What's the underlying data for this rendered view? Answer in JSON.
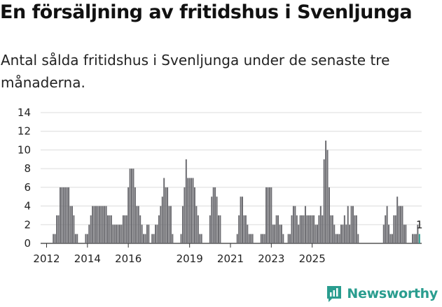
{
  "title": "En försäljning av fritidshus i Svenljunga",
  "subtitle": "Antal sålda fritidshus i Svenljunga under de senaste tre månaderna.",
  "brand": {
    "name": "Newsworthy",
    "icon": "newsworthy-logo-icon",
    "color": "#2a9d8f"
  },
  "chart_data": {
    "type": "bar",
    "title": "",
    "xlabel": "",
    "ylabel": "",
    "ylim": [
      0,
      14
    ],
    "yticks": [
      0,
      2,
      4,
      6,
      8,
      10,
      12,
      14
    ],
    "xticks": [
      "2012",
      "2014",
      "2016",
      "2019",
      "2021",
      "2023",
      "2025"
    ],
    "grid": true,
    "bar_color": "#6b6b70",
    "highlight_color": "#2a9d8f",
    "highlight_label": "1",
    "x_start": "2011-10",
    "series": [
      {
        "values": [
          0,
          0,
          0,
          0,
          0,
          0,
          0,
          1,
          1,
          3,
          3,
          6,
          6,
          6,
          6,
          6,
          6,
          4,
          4,
          3,
          1,
          1,
          0,
          0,
          0,
          0,
          1,
          1,
          2,
          3,
          4,
          4,
          4,
          4,
          4,
          4,
          4,
          4,
          4,
          3,
          3,
          3,
          2,
          2,
          2,
          2,
          2,
          2,
          3,
          3,
          3,
          6,
          8,
          8,
          8,
          6,
          4,
          4,
          3,
          2,
          1,
          1,
          2,
          2,
          0,
          1,
          1,
          2,
          2,
          3,
          4,
          5,
          7,
          6,
          6,
          4,
          4,
          1,
          0,
          0,
          0,
          0,
          1,
          4,
          6,
          9,
          7,
          7,
          7,
          7,
          6,
          4,
          3,
          1,
          1,
          0,
          0,
          0,
          0,
          3,
          5,
          6,
          6,
          5,
          3,
          3,
          0,
          0,
          0,
          0,
          0,
          0,
          0,
          0,
          0,
          1,
          3,
          5,
          5,
          3,
          3,
          2,
          1,
          1,
          1,
          0,
          0,
          0,
          0,
          1,
          1,
          1,
          6,
          6,
          6,
          6,
          2,
          2,
          3,
          3,
          2,
          2,
          1,
          0,
          0,
          1,
          1,
          3,
          4,
          4,
          3,
          2,
          3,
          3,
          3,
          4,
          3,
          3,
          3,
          3,
          3,
          2,
          2,
          3,
          4,
          3,
          9,
          11,
          10,
          6,
          3,
          3,
          2,
          1,
          1,
          1,
          2,
          2,
          3,
          2,
          4,
          2,
          4,
          4,
          3,
          3,
          1,
          0,
          0,
          0,
          0,
          0,
          0,
          0,
          0,
          0,
          0,
          0,
          0,
          0,
          0,
          2,
          3,
          4,
          2,
          1,
          1,
          3,
          3,
          5,
          4,
          4,
          4,
          2,
          2,
          0,
          0,
          0,
          1,
          1,
          1,
          2,
          1
        ]
      }
    ]
  }
}
